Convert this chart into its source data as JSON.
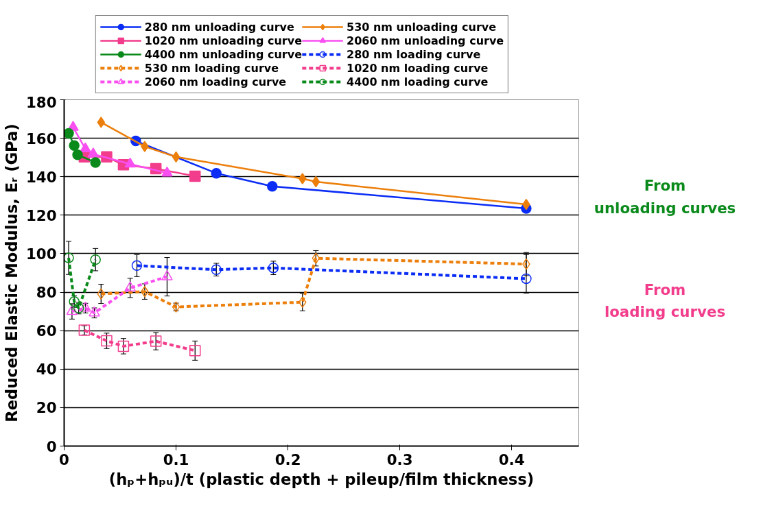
{
  "chart_data": {
    "type": "line",
    "xlabel": "(hₚ+hₚᵤ)/t (plastic depth + pileup/film thickness)",
    "ylabel": "Reduced Elastic Modulus, Eᵣ (GPa)",
    "xlim": [
      0,
      0.46
    ],
    "xticks": [
      0,
      0.1,
      0.2,
      0.3,
      0.4
    ],
    "ylim": [
      0,
      180
    ],
    "yticks": [
      0,
      20,
      40,
      60,
      80,
      100,
      120,
      140,
      160,
      180
    ],
    "grid": "y",
    "legend": "top",
    "annotations": [
      "From\nunloading curves",
      "From\nloading curves"
    ],
    "series": [
      {
        "name": "280 nm unloading curve",
        "color": "#0a2cf5",
        "marker": "circle",
        "line_style": "solid",
        "x": [
          0.064,
          0.136,
          0.186,
          0.413
        ],
        "values": [
          158.6,
          141.8,
          135,
          123.5
        ]
      },
      {
        "name": "530 nm unloading curve",
        "color": "#ec7f0b",
        "marker": "diamond",
        "line_style": "solid",
        "x": [
          0.033,
          0.072,
          0.1,
          0.213,
          0.225,
          0.413
        ],
        "values": [
          168.3,
          155.7,
          150.3,
          139,
          137.4,
          125.6
        ]
      },
      {
        "name": "1020 nm unloading curve",
        "color": "#f23d8c",
        "marker": "square",
        "line_style": "solid",
        "x": [
          0.018,
          0.038,
          0.053,
          0.082,
          0.117
        ],
        "values": [
          150.3,
          150.3,
          146.2,
          144.2,
          140.3
        ]
      },
      {
        "name": "2060 nm unloading curve",
        "color": "#f94ff0",
        "marker": "triangle",
        "line_style": "solid",
        "x": [
          0.008,
          0.019,
          0.026,
          0.059,
          0.092
        ],
        "values": [
          165.7,
          154.5,
          151.8,
          146.6,
          141.9
        ]
      },
      {
        "name": "4400 nm unloading curve",
        "color": "#0b8a1c",
        "marker": "circle",
        "line_style": "solid",
        "x": [
          0.004,
          0.009,
          0.012,
          0.028
        ],
        "values": [
          162.5,
          156.2,
          151.4,
          147.4
        ]
      },
      {
        "name": "280 nm loading curve",
        "color": "#0a2cf5",
        "marker": "circle",
        "line_style": "dashed",
        "x": [
          0.065,
          0.136,
          0.187,
          0.413
        ],
        "values": [
          93.8,
          91.7,
          92.6,
          87
        ],
        "errors": [
          5.7,
          3.3,
          3.5,
          [
            79.5,
            99.5
          ]
        ]
      },
      {
        "name": "530 nm loading curve",
        "color": "#ec7f0b",
        "marker": "diamond",
        "line_style": "dashed",
        "x": [
          0.033,
          0.072,
          0.1,
          0.213,
          0.225,
          0.413
        ],
        "values": [
          79.1,
          80.3,
          72.3,
          74.8,
          97.6,
          94.6
        ],
        "errors": [
          5,
          4,
          2,
          4.5,
          4,
          6
        ]
      },
      {
        "name": "1020 nm loading curve",
        "color": "#f23d8c",
        "marker": "square",
        "line_style": "dashed",
        "x": [
          0.018,
          0.038,
          0.053,
          0.082,
          0.117
        ],
        "values": [
          60.2,
          54.7,
          51.9,
          54.5,
          49.6
        ],
        "errors": [
          2.4,
          4,
          4,
          4.5,
          5
        ]
      },
      {
        "name": "2060 nm loading curve",
        "color": "#f94ff0",
        "marker": "triangle",
        "line_style": "dashed",
        "x": [
          0.007,
          0.019,
          0.027,
          0.059,
          0.092
        ],
        "values": [
          70,
          71.7,
          69.2,
          82.2,
          88
        ],
        "errors": [
          4,
          2.5,
          2.6,
          5,
          10
        ]
      },
      {
        "name": "4400 nm loading curve",
        "color": "#0b8a1c",
        "marker": "circle",
        "line_style": "dashed",
        "x": [
          0.004,
          0.009,
          0.013,
          0.028
        ],
        "values": [
          97.8,
          75.1,
          71.7,
          96.9
        ],
        "errors": [
          8.6,
          3,
          3,
          5.8
        ]
      }
    ]
  }
}
